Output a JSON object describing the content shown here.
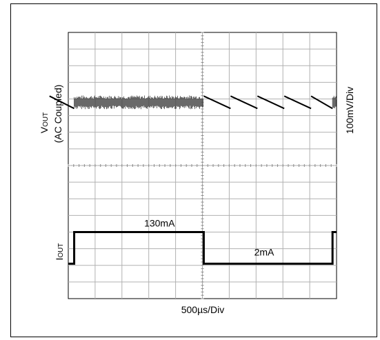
{
  "chart_data": {
    "type": "line",
    "title": "",
    "xlabel": "500µs/Div",
    "x_divisions": 10,
    "y_divisions": 16,
    "traces": {
      "vout": {
        "label_main": "V",
        "label_sub": "OUT",
        "label_line2": "(AC Coupled)",
        "scale_label": "100mV/Div"
      },
      "iout": {
        "label_main": "I",
        "label_sub": "OUT",
        "annotations": [
          {
            "text": "130mA",
            "x_div": 3.4,
            "level": "high"
          },
          {
            "text": "2mA",
            "x_div": 7.3,
            "level": "low"
          }
        ]
      }
    },
    "load_steps": [
      {
        "from_div": 0.0,
        "to_div": 0.22,
        "current_mA": 2
      },
      {
        "from_div": 0.22,
        "to_div": 5.05,
        "current_mA": 130
      },
      {
        "from_div": 5.05,
        "to_div": 9.85,
        "current_mA": 2
      },
      {
        "from_div": 9.85,
        "to_div": 10.0,
        "current_mA": 130
      }
    ]
  }
}
